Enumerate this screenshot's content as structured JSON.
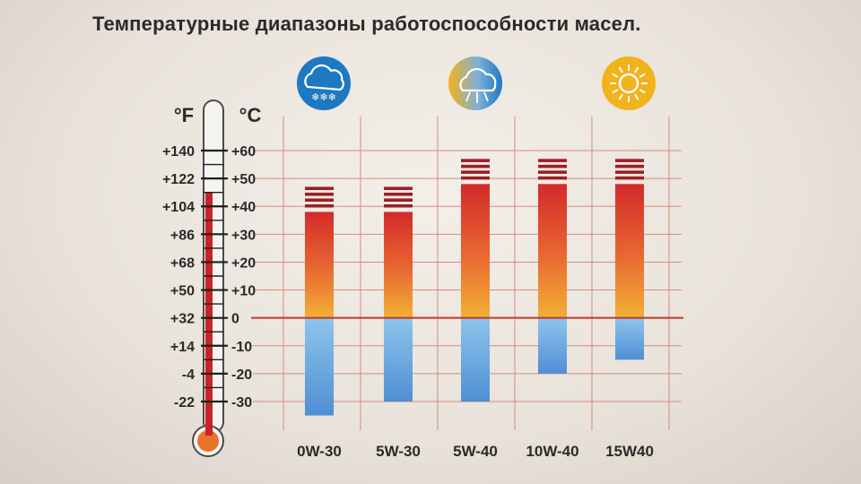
{
  "chart_data": {
    "type": "bar",
    "title": "Температурные диапазоны работоспособности масел.",
    "units": {
      "fahrenheit": "°F",
      "celsius": "°C"
    },
    "fahrenheit_ticks": [
      "+140",
      "+122",
      "+104",
      "+86",
      "+68",
      "+50",
      "+32",
      "+14",
      "-4",
      "-22"
    ],
    "celsius_ticks": [
      "+60",
      "+50",
      "+40",
      "+30",
      "+20",
      "+10",
      "0",
      "-10",
      "-20",
      "-30"
    ],
    "ylim": [
      -30,
      60
    ],
    "thermometer_level_c": 45,
    "categories": [
      "0W-30",
      "5W-30",
      "5W-40",
      "10W-40",
      "15W40"
    ],
    "series": [
      {
        "low": [
          -35,
          -30,
          -30,
          -20,
          -15
        ],
        "high": [
          38,
          38,
          48,
          48,
          48
        ],
        "stripes_top": [
          47,
          47,
          57,
          57,
          57
        ]
      }
    ],
    "weather_icons": [
      "snow-cloud-icon",
      "cloud-sun-icon",
      "sun-icon"
    ],
    "colors": {
      "hot": "#d42a2a",
      "warm": "#f0a830",
      "cold": "#5b9bd8",
      "grid": "#c0392b",
      "icon_blue": "#1e78c2",
      "icon_gold": "#f2b21c"
    }
  }
}
